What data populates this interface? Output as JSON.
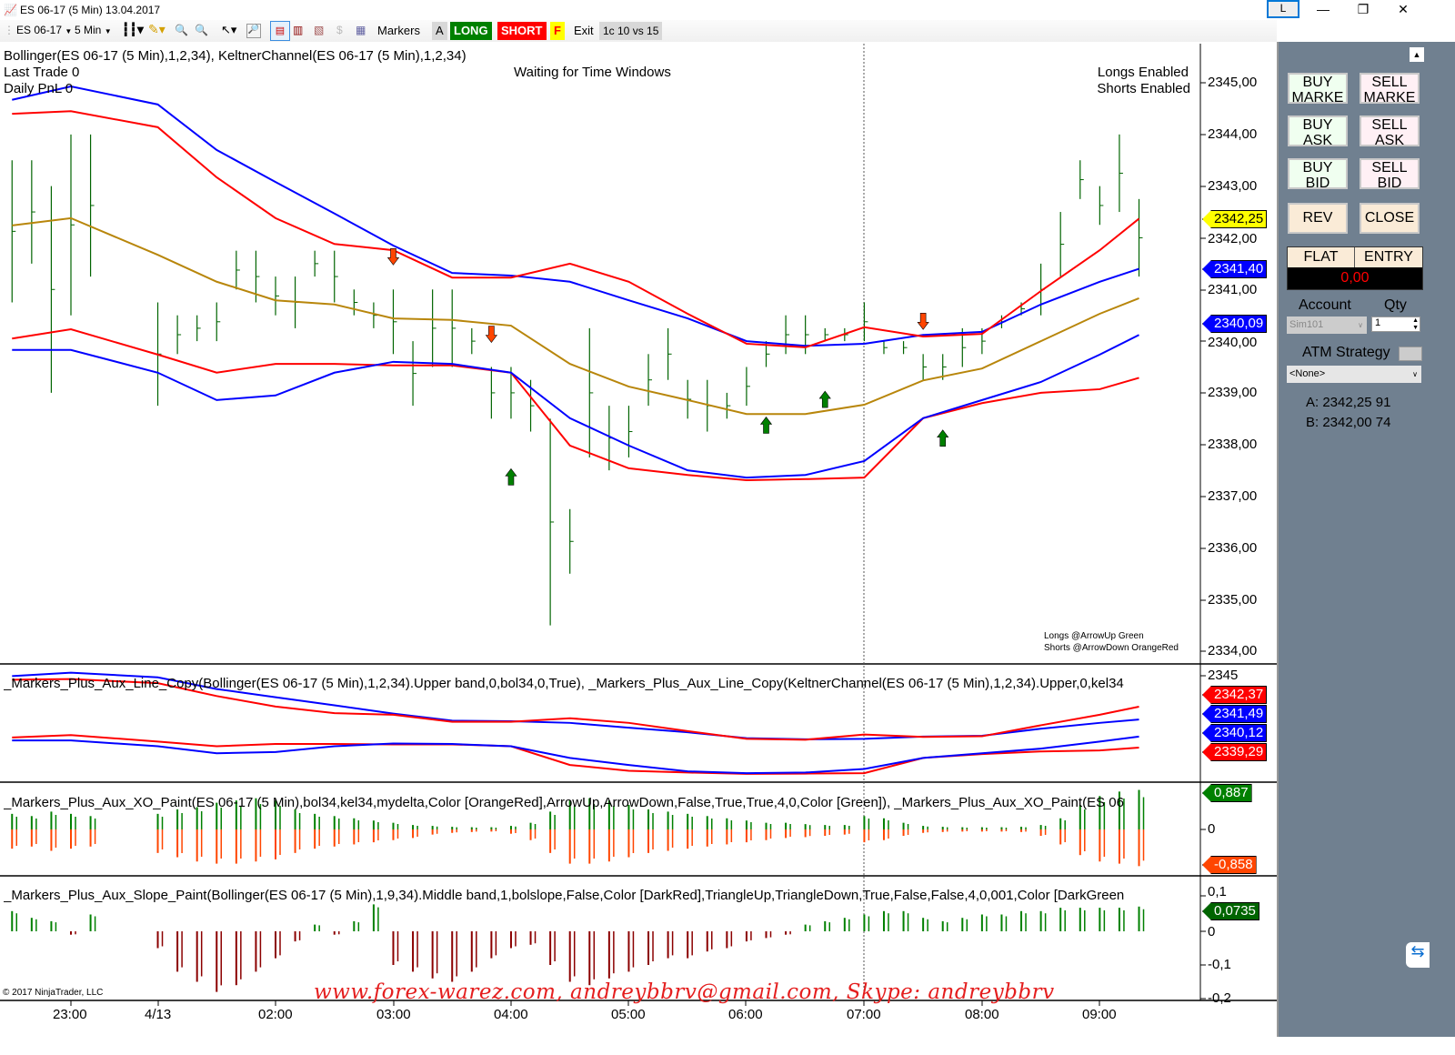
{
  "window": {
    "title": "ES 06-17 (5 Min)  13.04.2017",
    "controls": {
      "layout": "L",
      "minimize": "—",
      "restore": "❐",
      "close": "✕"
    }
  },
  "toolbar": {
    "instrument": "ES 06-17",
    "interval": "5 Min",
    "markers_label": "Markers",
    "a_label": "A",
    "long_label": "LONG",
    "short_label": "SHORT",
    "f_label": "F",
    "exit_label": "Exit",
    "setting_label": "1c 10 vs 15",
    "colors": {
      "long": "#008000",
      "short": "#ff0000",
      "f": "#ffff00"
    }
  },
  "main_panel": {
    "indicator_label": "Bollinger(ES 06-17 (5 Min),1,2,34), KeltnerChannel(ES 06-17 (5 Min),1,2,34)",
    "last_trade": "Last Trade 0",
    "daily_pnl": "Daily PnL  0",
    "status": "Waiting for Time Windows",
    "longs_status": "Longs Enabled",
    "shorts_status": "Shorts Enabled",
    "legend_longs": "Longs @ArrowUp Green",
    "legend_shorts": "Shorts @ArrowDown OrangeRed",
    "copyright": "© 2017 NinjaTrader, LLC"
  },
  "axes": {
    "main_ticks": [
      "2345,00",
      "2344,00",
      "2343,00",
      "2342,00",
      "2341,00",
      "2340,00",
      "2339,00",
      "2338,00",
      "2337,00",
      "2336,00",
      "2335,00",
      "2334,00"
    ],
    "panel2_ticks": [
      "2345"
    ],
    "panel3_ticks": [
      "0"
    ],
    "panel4_ticks": [
      "0,1",
      "0",
      "-0,1",
      "-0,2"
    ],
    "time_labels": [
      "23:00",
      "4/13",
      "02:00",
      "03:00",
      "04:00",
      "05:00",
      "06:00",
      "07:00",
      "08:00",
      "09:00"
    ]
  },
  "price_markers": {
    "last": "2342,25",
    "upper_bb": "2341,40",
    "lower_bb": "2340,09",
    "p2_upper_kc": "2342,37",
    "p2_upper_bb": "2341,49",
    "p2_lower_bb": "2340,12",
    "p2_lower_kc": "2339,29",
    "p3_pos": "0,887",
    "p3_neg": "-0,858",
    "p4_val": "0,0735"
  },
  "panels": {
    "line_copy_label": "_Markers_Plus_Aux_Line_Copy(Bollinger(ES  06-17  (5  Min),1,2,34).Upper  band,0,bol34,0,True),  _Markers_Plus_Aux_Line_Copy(KeltnerChannel(ES  06-17  (5  Min),1,2,34).Upper,0,kel34",
    "xo_label": "_Markers_Plus_Aux_XO_Paint(ES  06-17  (5  Min),bol34,kel34,mydelta,Color  [OrangeRed],ArrowUp,ArrowDown,False,True,True,4,0,Color  [Green]),  _Markers_Plus_Aux_XO_Paint(ES  06",
    "slope_label": "_Markers_Plus_Aux_Slope_Paint(Bollinger(ES  06-17  (5  Min),1,9,34).Middle  band,1,bolslope,False,Color  [DarkRed],TriangleUp,TriangleDown,True,False,False,4,0,001,Color  [DarkGreen"
  },
  "order_panel": {
    "buy_market": "BUY MARKE",
    "sell_market": "SELL MARKE",
    "buy_ask": "BUY ASK",
    "sell_ask": "SELL ASK",
    "buy_bid": "BUY BID",
    "sell_bid": "SELL BID",
    "rev": "REV",
    "close": "CLOSE",
    "position": "FLAT",
    "entry": "ENTRY",
    "pnl": "0,00",
    "account_label": "Account",
    "qty_label": "Qty",
    "account": "Sim101",
    "qty": "1",
    "atm_label": "ATM Strategy",
    "atm_value": "<None>",
    "ask": "A: 2342,25 91",
    "bid": "B: 2342,00 74"
  },
  "watermark": "www.forex-warez.com, andreybbrv@gmail.com, Skype: andreybbrv",
  "colors": {
    "bb": "#0000ff",
    "kc": "#ff0000",
    "middle": "#b8860b",
    "bars": "#006400",
    "up_arrow": "#008000",
    "down_arrow": "#ff4500",
    "slope_up": "#008000",
    "slope_down": "#8b0000"
  },
  "chart_data": {
    "type": "line",
    "x": [
      "22:30",
      "23:00",
      "01:00",
      "01:30",
      "02:00",
      "02:30",
      "03:00",
      "03:30",
      "04:00",
      "04:30",
      "05:00",
      "05:30",
      "06:00",
      "06:30",
      "07:00",
      "07:30",
      "08:00",
      "08:30",
      "09:00",
      "09:20"
    ],
    "series": [
      {
        "role": "bollinger_upper",
        "values": [
          2344.67,
          2344.93,
          2344.58,
          2343.7,
          2343.08,
          2342.47,
          2341.85,
          2341.32,
          2341.27,
          2341.15,
          2340.79,
          2340.44,
          2340.0,
          2339.91,
          2339.95,
          2340.12,
          2340.18,
          2340.71,
          2341.15,
          2341.4
        ]
      },
      {
        "role": "keltner_upper",
        "values": [
          2344.4,
          2344.45,
          2344.14,
          2343.17,
          2342.38,
          2341.88,
          2341.76,
          2341.23,
          2341.23,
          2341.5,
          2341.15,
          2340.53,
          2339.95,
          2339.88,
          2340.27,
          2340.09,
          2340.14,
          2340.97,
          2341.76,
          2342.37
        ]
      },
      {
        "role": "middle",
        "values": [
          2342.24,
          2342.38,
          2341.67,
          2341.15,
          2340.79,
          2340.71,
          2340.44,
          2340.41,
          2340.3,
          2339.56,
          2339.12,
          2338.86,
          2338.59,
          2338.59,
          2338.77,
          2339.24,
          2339.47,
          2340.0,
          2340.53,
          2340.83
        ]
      },
      {
        "role": "keltner_lower",
        "values": [
          2340.05,
          2340.23,
          2339.74,
          2339.39,
          2339.56,
          2339.56,
          2339.53,
          2339.53,
          2339.39,
          2337.98,
          2337.54,
          2337.41,
          2337.31,
          2337.33,
          2337.36,
          2338.51,
          2338.8,
          2339.0,
          2339.07,
          2339.29
        ]
      },
      {
        "role": "bollinger_lower",
        "values": [
          2339.83,
          2339.83,
          2339.39,
          2338.86,
          2338.95,
          2339.39,
          2339.6,
          2339.56,
          2339.39,
          2338.51,
          2337.98,
          2337.5,
          2337.36,
          2337.41,
          2337.68,
          2338.51,
          2338.86,
          2339.21,
          2339.74,
          2340.12
        ]
      }
    ],
    "bar_times": [
      "22:30",
      "22:40",
      "22:50",
      "23:00",
      "23:10",
      "01:00",
      "01:10",
      "01:20",
      "01:30",
      "01:40",
      "01:50",
      "02:00",
      "02:10",
      "02:20",
      "02:30",
      "02:40",
      "02:50",
      "03:00",
      "03:10",
      "03:20",
      "03:30",
      "03:40",
      "03:50",
      "04:00",
      "04:10",
      "04:20",
      "04:30",
      "04:40",
      "04:50",
      "05:00",
      "05:10",
      "05:20",
      "05:30",
      "05:40",
      "05:50",
      "06:00",
      "06:10",
      "06:20",
      "06:30",
      "06:40",
      "06:50",
      "07:00",
      "07:10",
      "07:20",
      "07:30",
      "07:40",
      "07:50",
      "08:00",
      "08:10",
      "08:20",
      "08:30",
      "08:40",
      "08:50",
      "09:00",
      "09:10",
      "09:20"
    ],
    "bars_high": [
      2343.5,
      2343.5,
      2343.0,
      2344.0,
      2344.0,
      2340.75,
      2340.5,
      2340.5,
      2340.75,
      2341.75,
      2341.75,
      2341.25,
      2341.25,
      2341.75,
      2341.75,
      2341.0,
      2340.75,
      2341.0,
      2340.0,
      2341.0,
      2341.0,
      2340.25,
      2339.5,
      2339.5,
      2339.25,
      2338.5,
      2336.75,
      2340.25,
      2338.75,
      2338.75,
      2339.75,
      2340.25,
      2339.25,
      2339.25,
      2339.0,
      2339.5,
      2340.0,
      2340.5,
      2340.5,
      2340.25,
      2340.25,
      2340.75,
      2340.0,
      2340.0,
      2339.75,
      2339.75,
      2340.25,
      2340.25,
      2340.5,
      2340.75,
      2341.5,
      2342.5,
      2343.5,
      2343.0,
      2344.0,
      2342.75
    ],
    "bars_low": [
      2340.75,
      2341.5,
      2339.0,
      2340.5,
      2341.25,
      2338.75,
      2339.75,
      2340.0,
      2340.0,
      2341.0,
      2340.75,
      2340.5,
      2340.25,
      2341.25,
      2340.75,
      2340.5,
      2340.25,
      2339.75,
      2338.75,
      2339.5,
      2339.5,
      2339.75,
      2338.5,
      2338.5,
      2338.25,
      2334.5,
      2335.5,
      2337.75,
      2337.5,
      2337.75,
      2338.75,
      2339.25,
      2338.5,
      2338.25,
      2338.5,
      2338.75,
      2339.5,
      2339.75,
      2339.75,
      2340.0,
      2340.0,
      2340.0,
      2339.75,
      2339.75,
      2339.25,
      2339.25,
      2339.5,
      2339.75,
      2340.25,
      2340.5,
      2340.5,
      2341.25,
      2342.75,
      2342.25,
      2342.5,
      2341.25
    ],
    "last_price": 2342.25,
    "signals": [
      {
        "type": "short",
        "time": "03:00"
      },
      {
        "type": "short",
        "time": "03:50"
      },
      {
        "type": "long",
        "time": "04:00"
      },
      {
        "type": "long",
        "time": "06:10"
      },
      {
        "type": "long",
        "time": "06:40"
      },
      {
        "type": "short",
        "time": "07:30"
      },
      {
        "type": "long",
        "time": "07:40"
      }
    ],
    "xo_pos": [
      0.35,
      0.3,
      0.4,
      0.35,
      0.3,
      0.35,
      0.45,
      0.5,
      0.6,
      0.65,
      0.7,
      0.65,
      0.45,
      0.35,
      0.3,
      0.25,
      0.2,
      0.15,
      0.1,
      0.08,
      0.06,
      0.05,
      0.05,
      0.08,
      0.15,
      0.4,
      0.65,
      0.7,
      0.65,
      0.55,
      0.45,
      0.4,
      0.35,
      0.3,
      0.25,
      0.2,
      0.15,
      0.15,
      0.12,
      0.1,
      0.1,
      0.3,
      0.25,
      0.15,
      0.08,
      0.06,
      0.05,
      0.05,
      0.05,
      0.06,
      0.1,
      0.25,
      0.55,
      0.75,
      0.85,
      0.887
    ],
    "xo_neg": [
      -0.45,
      -0.4,
      -0.5,
      -0.45,
      -0.4,
      -0.55,
      -0.65,
      -0.75,
      -0.8,
      -0.8,
      -0.75,
      -0.7,
      -0.55,
      -0.45,
      -0.4,
      -0.35,
      -0.3,
      -0.25,
      -0.2,
      -0.12,
      -0.08,
      -0.06,
      -0.05,
      -0.1,
      -0.25,
      -0.55,
      -0.8,
      -0.8,
      -0.75,
      -0.65,
      -0.55,
      -0.5,
      -0.45,
      -0.4,
      -0.35,
      -0.3,
      -0.25,
      -0.2,
      -0.18,
      -0.15,
      -0.12,
      -0.3,
      -0.25,
      -0.15,
      -0.08,
      -0.06,
      -0.05,
      -0.05,
      -0.05,
      -0.06,
      -0.15,
      -0.35,
      -0.6,
      -0.75,
      -0.8,
      -0.858
    ],
    "slope": [
      0.06,
      0.04,
      0.03,
      -0.01,
      0.05,
      -0.05,
      -0.12,
      -0.15,
      -0.18,
      -0.16,
      -0.12,
      -0.08,
      -0.03,
      0.02,
      -0.01,
      0.03,
      0.08,
      -0.1,
      -0.12,
      -0.14,
      -0.15,
      -0.12,
      -0.08,
      -0.05,
      -0.04,
      -0.1,
      -0.15,
      -0.16,
      -0.14,
      -0.12,
      -0.1,
      -0.08,
      -0.08,
      -0.06,
      -0.05,
      -0.03,
      -0.02,
      -0.01,
      0.02,
      0.03,
      0.04,
      0.05,
      0.06,
      0.06,
      0.04,
      0.03,
      0.04,
      0.05,
      0.05,
      0.06,
      0.06,
      0.07,
      0.07,
      0.07,
      0.07,
      0.0735
    ],
    "ylim_main": [
      2334,
      2345
    ],
    "ylim_slope": [
      -0.2,
      0.1
    ]
  }
}
